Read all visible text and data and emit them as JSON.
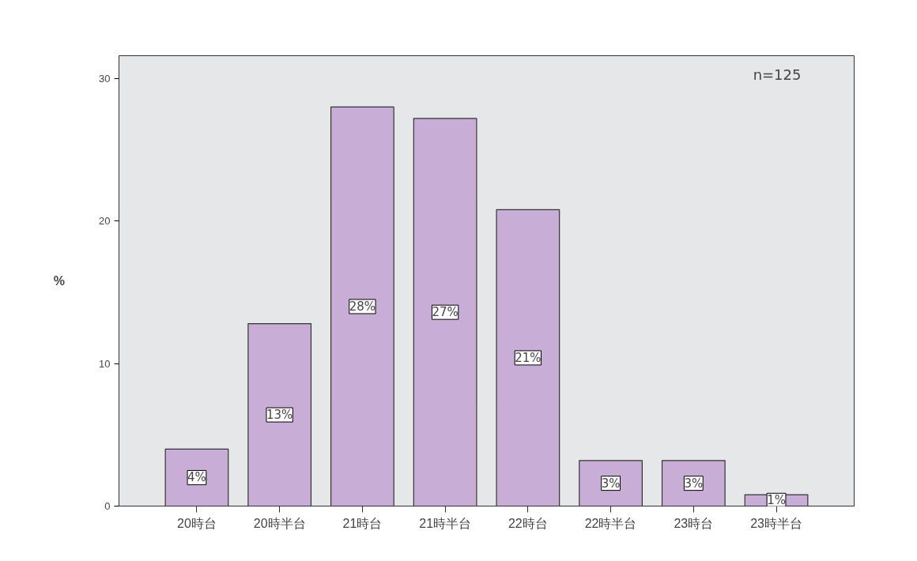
{
  "chart_data": {
    "type": "bar",
    "categories": [
      "20時台",
      "20時半台",
      "21時台",
      "21時半台",
      "22時台",
      "22時半台",
      "23時台",
      "23時半台"
    ],
    "values": [
      4.0,
      12.8,
      28.0,
      27.2,
      20.8,
      3.2,
      3.2,
      0.8
    ],
    "value_labels": [
      "4%",
      "13%",
      "28%",
      "27%",
      "21%",
      "3%",
      "3%",
      "1%"
    ],
    "color": "#c8aed6",
    "ylabel": "%",
    "ylim": [
      0,
      31.6
    ],
    "yticks": [
      0,
      10,
      20,
      30
    ],
    "grid": false,
    "annotations": [
      "n=125"
    ]
  }
}
